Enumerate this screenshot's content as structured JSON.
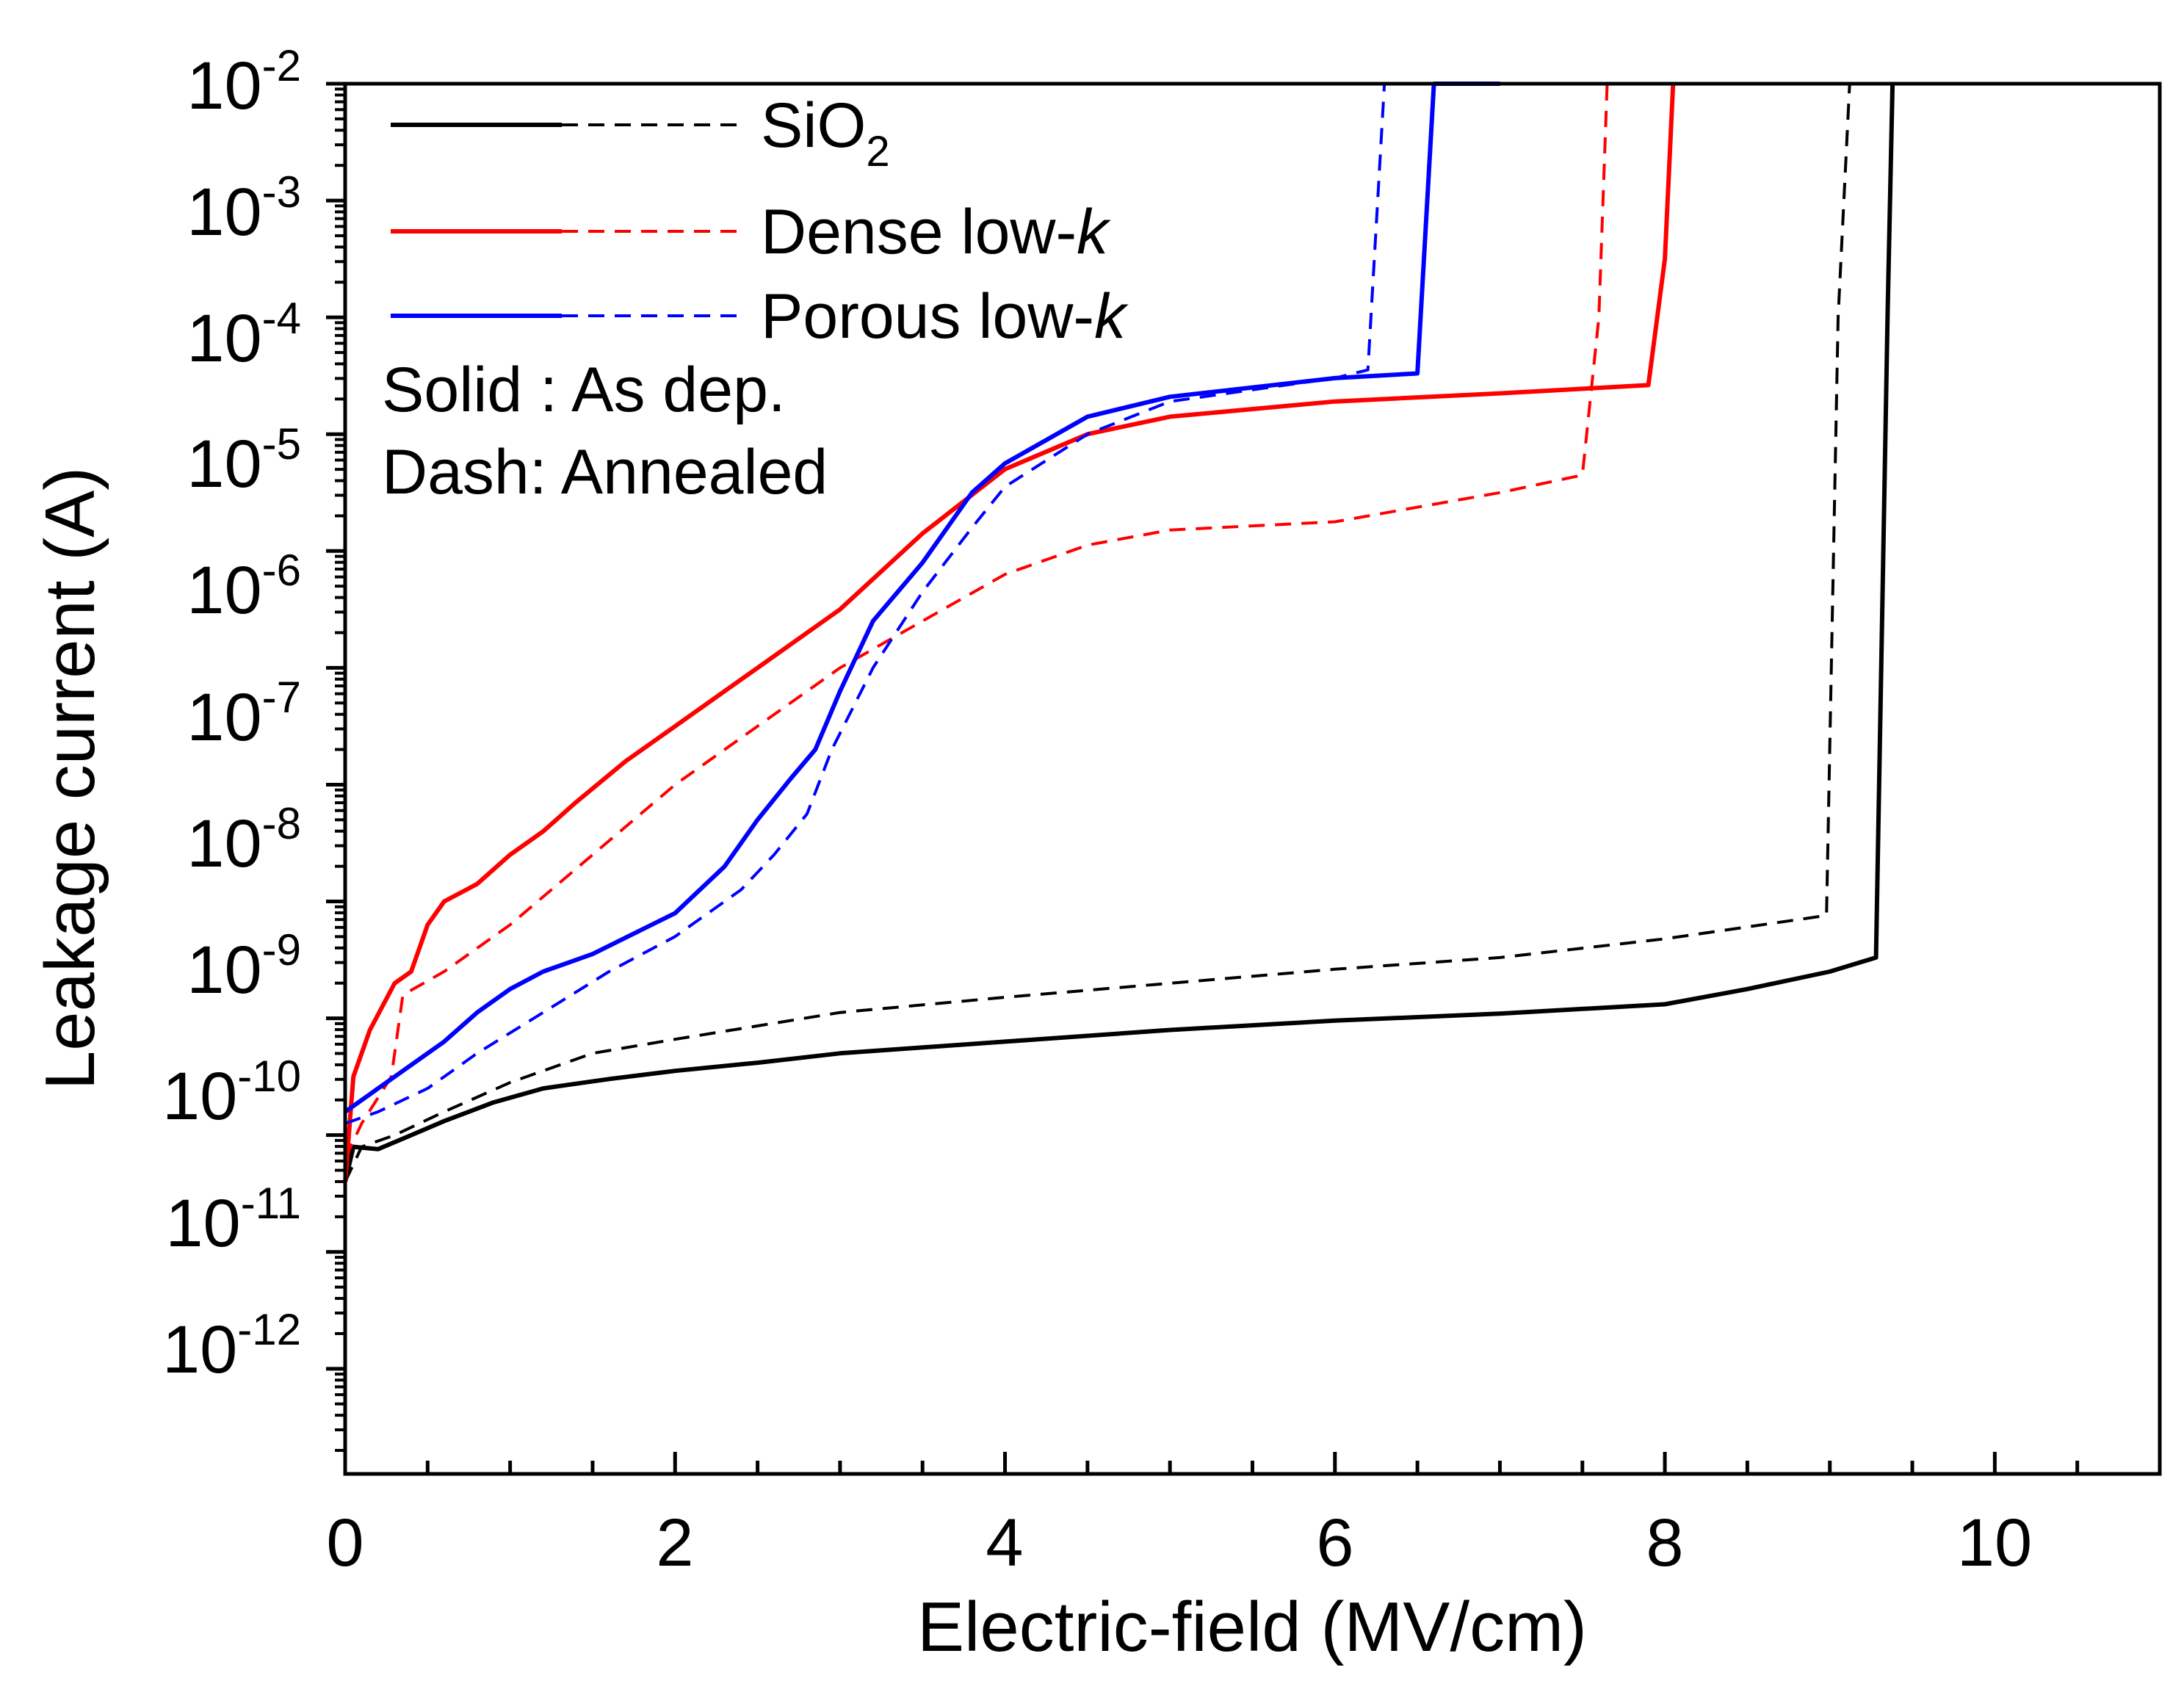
{
  "chart_data": {
    "type": "line",
    "title": "",
    "xlabel": "Electric-field (MV/cm)",
    "ylabel": "Leakage current (A)",
    "xlim": [
      0,
      11
    ],
    "ylim_log10": [
      -13.9,
      -2
    ],
    "y_scale": "log",
    "x_ticks": [
      0,
      2,
      4,
      6,
      8,
      10
    ],
    "x_tick_labels": [
      "0",
      "2",
      "4",
      "6",
      "8",
      "10"
    ],
    "y_tick_exponents": [
      -2,
      -3,
      -4,
      -5,
      -6,
      -7,
      -8,
      -9,
      -10,
      -11,
      -12
    ],
    "y_tick_labels": [
      {
        "base": "10",
        "exp": "-2"
      },
      {
        "base": "10",
        "exp": "-3"
      },
      {
        "base": "10",
        "exp": "-4"
      },
      {
        "base": "10",
        "exp": "-5"
      },
      {
        "base": "10",
        "exp": "-6"
      },
      {
        "base": "10",
        "exp": "-7"
      },
      {
        "base": "10",
        "exp": "-8"
      },
      {
        "base": "10",
        "exp": "-9"
      },
      {
        "base": "10",
        "exp": "-10"
      },
      {
        "base": "10",
        "exp": "-11"
      },
      {
        "base": "10",
        "exp": "-12"
      }
    ],
    "legend": [
      {
        "label_main": "SiO",
        "label_sub": "2",
        "color": "#000000"
      },
      {
        "label_main": "Dense low-",
        "label_italic": "k",
        "color": "#ff0000"
      },
      {
        "label_main": "Porous low-",
        "label_italic": "k",
        "color": "#0000ff"
      }
    ],
    "notes": [
      "Solid : As dep.",
      "Dash: Annealed"
    ],
    "series": [
      {
        "name": "SiO2 As dep.",
        "color": "#000000",
        "dash": false,
        "points": [
          [
            0,
            -11.4
          ],
          [
            0.05,
            -11.1
          ],
          [
            0.2,
            -11.12
          ],
          [
            0.4,
            -11.0
          ],
          [
            0.6,
            -10.88
          ],
          [
            0.9,
            -10.72
          ],
          [
            1.2,
            -10.6
          ],
          [
            1.6,
            -10.52
          ],
          [
            2.0,
            -10.45
          ],
          [
            2.5,
            -10.38
          ],
          [
            3.0,
            -10.3
          ],
          [
            4.0,
            -10.2
          ],
          [
            5.0,
            -10.1
          ],
          [
            6.0,
            -10.02
          ],
          [
            7.0,
            -9.96
          ],
          [
            8.0,
            -9.88
          ],
          [
            8.5,
            -9.75
          ],
          [
            9.0,
            -9.6
          ],
          [
            9.28,
            -9.48
          ],
          [
            9.35,
            -4.0
          ],
          [
            9.38,
            -2.0
          ]
        ]
      },
      {
        "name": "SiO2 Annealed",
        "color": "#000000",
        "dash": true,
        "points": [
          [
            0,
            -11.4
          ],
          [
            0.1,
            -11.1
          ],
          [
            0.3,
            -11.0
          ],
          [
            0.6,
            -10.8
          ],
          [
            1.0,
            -10.55
          ],
          [
            1.5,
            -10.3
          ],
          [
            2.0,
            -10.18
          ],
          [
            3.0,
            -9.95
          ],
          [
            4.0,
            -9.82
          ],
          [
            5.0,
            -9.7
          ],
          [
            6.0,
            -9.58
          ],
          [
            7.0,
            -9.48
          ],
          [
            8.0,
            -9.32
          ],
          [
            8.98,
            -9.12
          ],
          [
            9.05,
            -4.0
          ],
          [
            9.12,
            -2.0
          ]
        ]
      },
      {
        "name": "Dense low-k As dep.",
        "color": "#ff0000",
        "dash": false,
        "points": [
          [
            0,
            -11.4
          ],
          [
            0.05,
            -10.5
          ],
          [
            0.15,
            -10.1
          ],
          [
            0.3,
            -9.7
          ],
          [
            0.4,
            -9.6
          ],
          [
            0.5,
            -9.2
          ],
          [
            0.6,
            -9.0
          ],
          [
            0.8,
            -8.85
          ],
          [
            1.0,
            -8.6
          ],
          [
            1.2,
            -8.4
          ],
          [
            1.4,
            -8.15
          ],
          [
            1.7,
            -7.8
          ],
          [
            2.0,
            -7.5
          ],
          [
            2.5,
            -7.0
          ],
          [
            3.0,
            -6.5
          ],
          [
            3.5,
            -5.85
          ],
          [
            4.0,
            -5.3
          ],
          [
            4.5,
            -5.0
          ],
          [
            5.0,
            -4.85
          ],
          [
            6.0,
            -4.72
          ],
          [
            7.0,
            -4.65
          ],
          [
            7.9,
            -4.58
          ],
          [
            8.0,
            -3.5
          ],
          [
            8.05,
            -2.0
          ]
        ]
      },
      {
        "name": "Dense low-k Annealed",
        "color": "#ff0000",
        "dash": true,
        "points": [
          [
            0,
            -11.2
          ],
          [
            0.1,
            -10.9
          ],
          [
            0.28,
            -10.5
          ],
          [
            0.35,
            -9.8
          ],
          [
            0.6,
            -9.6
          ],
          [
            1.0,
            -9.2
          ],
          [
            1.5,
            -8.6
          ],
          [
            2.0,
            -8.0
          ],
          [
            2.5,
            -7.5
          ],
          [
            3.0,
            -7.0
          ],
          [
            3.5,
            -6.6
          ],
          [
            4.0,
            -6.2
          ],
          [
            4.5,
            -5.95
          ],
          [
            5.0,
            -5.82
          ],
          [
            6.0,
            -5.75
          ],
          [
            7.0,
            -5.5
          ],
          [
            7.5,
            -5.35
          ],
          [
            7.6,
            -4.0
          ],
          [
            7.65,
            -2.0
          ]
        ]
      },
      {
        "name": "Porous low-k As dep.",
        "color": "#0000ff",
        "dash": false,
        "points": [
          [
            0,
            -10.8
          ],
          [
            0.2,
            -10.6
          ],
          [
            0.4,
            -10.4
          ],
          [
            0.6,
            -10.2
          ],
          [
            0.8,
            -9.95
          ],
          [
            1.0,
            -9.75
          ],
          [
            1.2,
            -9.6
          ],
          [
            1.5,
            -9.45
          ],
          [
            2.0,
            -9.1
          ],
          [
            2.3,
            -8.7
          ],
          [
            2.5,
            -8.3
          ],
          [
            2.7,
            -7.95
          ],
          [
            2.85,
            -7.7
          ],
          [
            3.0,
            -7.2
          ],
          [
            3.2,
            -6.6
          ],
          [
            3.5,
            -6.1
          ],
          [
            3.8,
            -5.5
          ],
          [
            4.0,
            -5.25
          ],
          [
            4.5,
            -4.85
          ],
          [
            5.0,
            -4.68
          ],
          [
            5.5,
            -4.6
          ],
          [
            6.0,
            -4.52
          ],
          [
            6.5,
            -4.48
          ],
          [
            6.6,
            -2.0
          ],
          [
            7.0,
            -2.0
          ]
        ]
      },
      {
        "name": "Porous low-k Annealed",
        "color": "#0000ff",
        "dash": true,
        "points": [
          [
            0,
            -10.9
          ],
          [
            0.2,
            -10.8
          ],
          [
            0.5,
            -10.6
          ],
          [
            0.8,
            -10.3
          ],
          [
            1.2,
            -9.95
          ],
          [
            1.6,
            -9.6
          ],
          [
            2.0,
            -9.3
          ],
          [
            2.4,
            -8.9
          ],
          [
            2.6,
            -8.6
          ],
          [
            2.8,
            -8.25
          ],
          [
            2.95,
            -7.7
          ],
          [
            3.2,
            -7.0
          ],
          [
            3.5,
            -6.35
          ],
          [
            3.8,
            -5.8
          ],
          [
            4.0,
            -5.45
          ],
          [
            4.5,
            -5.0
          ],
          [
            5.0,
            -4.72
          ],
          [
            5.5,
            -4.62
          ],
          [
            6.0,
            -4.52
          ],
          [
            6.2,
            -4.45
          ],
          [
            6.3,
            -2.0
          ],
          [
            6.5,
            -2.0
          ]
        ]
      }
    ]
  }
}
